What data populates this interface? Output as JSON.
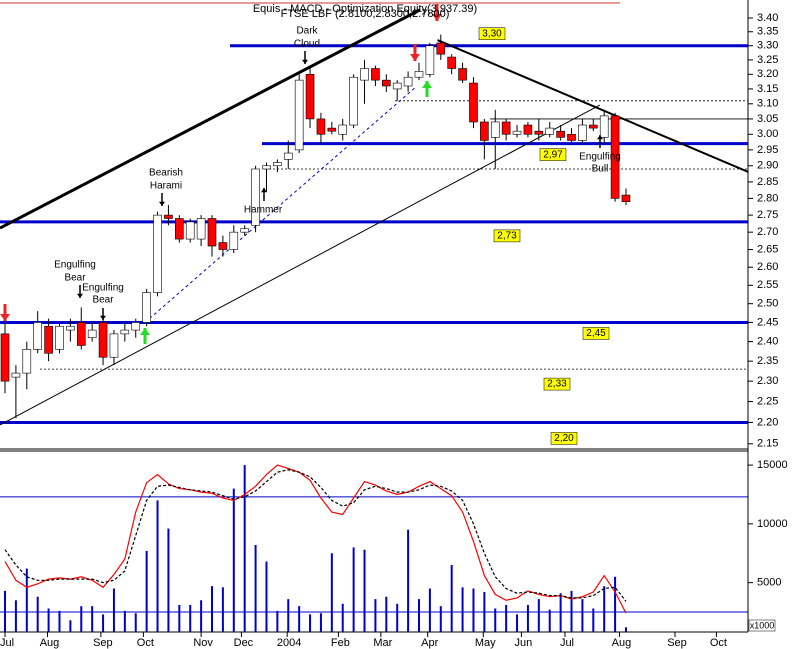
{
  "chart_data": [
    {
      "type": "candlestick",
      "title": "Equis - MACD - Optimization Equity(3,937.39)",
      "subtitle": "FTSE LBF (2.8100,2.8300,2.7800)",
      "x": [
        0,
        1,
        2,
        3,
        4,
        5,
        6,
        7,
        8,
        9,
        10,
        11,
        12,
        13,
        14,
        15,
        16,
        17,
        18,
        19,
        20,
        21,
        22,
        23,
        24,
        25,
        26,
        27,
        28,
        29,
        30,
        31,
        32,
        33,
        34,
        35,
        36,
        37,
        38,
        39,
        40,
        41,
        42,
        43,
        44,
        45,
        46,
        47,
        48,
        49,
        50,
        51,
        52,
        53,
        54,
        55,
        56,
        57
      ],
      "open": [
        2.42,
        2.31,
        2.32,
        2.38,
        2.44,
        2.38,
        2.43,
        2.45,
        2.41,
        2.45,
        2.36,
        2.42,
        2.43,
        2.45,
        2.53,
        2.75,
        2.74,
        2.68,
        2.68,
        2.74,
        2.67,
        2.65,
        2.7,
        2.72,
        2.89,
        2.9,
        2.92,
        2.95,
        3.2,
        3.05,
        3.02,
        3.0,
        3.03,
        3.18,
        3.22,
        3.18,
        3.15,
        3.16,
        3.19,
        3.2,
        3.31,
        3.26,
        3.22,
        3.17,
        3.04,
        2.99,
        3.04,
        3.0,
        3.03,
        3.01,
        3.0,
        3.01,
        3.0,
        2.98,
        3.03,
        2.99,
        3.06,
        2.81
      ],
      "high": [
        2.45,
        2.34,
        2.4,
        2.48,
        2.46,
        2.45,
        2.46,
        2.49,
        2.45,
        2.46,
        2.43,
        2.45,
        2.46,
        2.54,
        2.76,
        2.78,
        2.75,
        2.74,
        2.75,
        2.75,
        2.69,
        2.72,
        2.72,
        2.9,
        2.91,
        2.92,
        2.98,
        3.2,
        3.23,
        3.07,
        3.04,
        3.05,
        3.2,
        3.25,
        3.23,
        3.2,
        3.18,
        3.21,
        3.24,
        3.31,
        3.34,
        3.27,
        3.24,
        3.19,
        3.05,
        3.08,
        3.05,
        3.03,
        3.04,
        3.05,
        3.04,
        3.03,
        3.02,
        3.05,
        3.05,
        3.08,
        3.07,
        2.83
      ],
      "low": [
        2.27,
        2.21,
        2.28,
        2.37,
        2.35,
        2.37,
        2.4,
        2.38,
        2.4,
        2.34,
        2.34,
        2.4,
        2.41,
        2.44,
        2.52,
        2.72,
        2.67,
        2.67,
        2.66,
        2.63,
        2.63,
        2.64,
        2.69,
        2.7,
        2.82,
        2.88,
        2.89,
        2.94,
        3.02,
        2.97,
        3.0,
        2.98,
        3.02,
        3.1,
        3.16,
        3.14,
        3.11,
        3.14,
        3.18,
        3.19,
        3.25,
        3.2,
        3.17,
        3.02,
        2.92,
        2.89,
        2.98,
        2.99,
        2.99,
        2.98,
        2.99,
        2.98,
        2.97,
        2.97,
        3.01,
        2.97,
        2.79,
        2.78
      ],
      "close": [
        2.3,
        2.32,
        2.38,
        2.45,
        2.37,
        2.44,
        2.44,
        2.39,
        2.43,
        2.36,
        2.42,
        2.43,
        2.45,
        2.53,
        2.75,
        2.74,
        2.68,
        2.73,
        2.74,
        2.66,
        2.65,
        2.7,
        2.71,
        2.89,
        2.9,
        2.91,
        2.94,
        3.18,
        3.05,
        3.0,
        3.01,
        3.03,
        3.19,
        3.22,
        3.18,
        3.16,
        3.17,
        3.19,
        3.21,
        3.3,
        3.27,
        3.22,
        3.18,
        3.04,
        2.98,
        3.04,
        3.0,
        3.01,
        3.0,
        3.0,
        3.02,
        2.99,
        2.98,
        3.03,
        3.02,
        3.06,
        2.8,
        2.79
      ],
      "up_color": "#ffffff",
      "down_color": "#ff0000",
      "log": true,
      "xlim": [
        -0.46,
        68.2
      ],
      "ylim": [
        2.138,
        3.459
      ],
      "yticks": [
        {
          "value": 3.4,
          "label": "3.40"
        },
        3.35,
        {
          "value": 3.3,
          "label": "3.30"
        },
        3.25,
        {
          "value": 3.2,
          "label": "3.20"
        },
        3.15,
        {
          "value": 3.1,
          "label": "3.10"
        },
        3.05,
        {
          "value": 3.0,
          "label": "3.00"
        },
        2.95,
        {
          "value": 2.9,
          "label": "2.90"
        },
        2.85,
        {
          "value": 2.8,
          "label": "2.80"
        },
        2.75,
        {
          "value": 2.7,
          "label": "2.70"
        },
        2.65,
        {
          "value": 2.6,
          "label": "2.60"
        },
        2.55,
        {
          "value": 2.5,
          "label": "2.50"
        },
        2.45,
        {
          "value": 2.4,
          "label": "2.40"
        },
        2.35,
        {
          "value": 2.3,
          "label": "2.30"
        },
        2.25,
        {
          "value": 2.2,
          "label": "2.20"
        },
        2.15
      ],
      "xticks": [
        {
          "value": 0,
          "label": "Jul"
        },
        {
          "value": 3.9,
          "label": "Aug"
        },
        {
          "value": 8.8,
          "label": "Sep"
        },
        {
          "value": 12.7,
          "label": "Oct"
        },
        {
          "value": 18,
          "label": "Nov"
        },
        {
          "value": 21.7,
          "label": "Dec"
        },
        {
          "value": 25.9,
          "label": "2004"
        },
        {
          "value": 30.6,
          "label": "Feb"
        },
        {
          "value": 34.5,
          "label": "Mar"
        },
        {
          "value": 38.8,
          "label": "Apr"
        },
        {
          "value": 43.9,
          "label": "May"
        },
        {
          "value": 47.4,
          "label": "Jun"
        },
        {
          "value": 51.4,
          "label": "Jul"
        },
        {
          "value": 56.4,
          "label": "Aug"
        },
        {
          "value": 61.5,
          "label": "Sep"
        },
        {
          "value": 65.3,
          "label": "Oct"
        }
      ],
      "levels": [
        {
          "value": 3.3,
          "label": "3,30",
          "color": "#0000cc"
        },
        {
          "value": 2.97,
          "label": "2,97",
          "color": "#0000cc"
        },
        {
          "value": 2.73,
          "label": "2,73",
          "color": "#0000cc"
        },
        {
          "value": 2.45,
          "label": "2,45",
          "color": "#0000cc"
        },
        {
          "value": 2.33,
          "label": "2,33",
          "color": "#000000",
          "dash": true
        },
        {
          "value": 2.2,
          "label": "2,20",
          "color": "#0000cc"
        }
      ],
      "guides": [
        {
          "value": 3.11,
          "color": "#000000",
          "dash": true
        },
        {
          "value": 2.89,
          "color": "#000000",
          "dash": true
        },
        {
          "value": 3.05,
          "color": "#000000"
        }
      ],
      "trendlines": [
        {
          "x": [
            -0.46,
            38.1
          ],
          "y": [
            2.712,
            3.43
          ],
          "color": "#000000",
          "width": 3
        },
        {
          "x": [
            39.7,
            68.2
          ],
          "y": [
            3.32,
            2.881
          ],
          "color": "#000000",
          "width": 2
        },
        {
          "x": [
            -0.46,
            54.6
          ],
          "y": [
            2.194,
            3.096
          ],
          "color": "#000000",
          "width": 1
        },
        {
          "x": [
            12.85,
            37.6
          ],
          "y": [
            2.45,
            3.153
          ],
          "color": "#0000cc",
          "width": 1,
          "dash": true
        }
      ],
      "annotations": [
        {
          "text": [
            "Engulfing",
            "Bear"
          ]
        },
        {
          "text": [
            "Engulfing",
            "Bear"
          ]
        },
        {
          "text": [
            "Bearish",
            "Harami"
          ]
        },
        {
          "text": [
            "Hammer"
          ]
        },
        {
          "text": [
            "Dark",
            "Cloud"
          ]
        },
        {
          "text": [
            "Engulfing",
            "Bull"
          ]
        }
      ]
    },
    {
      "type": "combo",
      "series": [
        {
          "kind": "bar",
          "color": "#0000cc",
          "values": [
            4300,
            3500,
            6200,
            3800,
            2800,
            2600,
            1800,
            3000,
            3000,
            2300,
            4500,
            2600,
            2400,
            7700,
            12000,
            9600,
            3100,
            3100,
            3500,
            4700,
            4600,
            13000,
            15000,
            8200,
            6800,
            2600,
            3600,
            3000,
            2300,
            2400,
            7500,
            3200,
            8000,
            7800,
            3600,
            3800,
            3200,
            9500,
            3600,
            4500,
            3000,
            6500,
            4600,
            4500,
            4200,
            2800,
            3100,
            2300,
            3100,
            3600,
            2700,
            4100,
            4300,
            3600,
            2800,
            4700,
            5500,
            1200
          ]
        },
        {
          "kind": "line",
          "color": "#ff0000",
          "values": [
            6800,
            5200,
            4600,
            4900,
            5300,
            5400,
            5300,
            5500,
            5200,
            4600,
            5700,
            7000,
            11000,
            13500,
            14200,
            13400,
            13000,
            12900,
            12700,
            12600,
            12200,
            12000,
            12500,
            13200,
            14200,
            15000,
            14700,
            14400,
            13700,
            12200,
            11000,
            10800,
            12200,
            13600,
            13300,
            12800,
            12500,
            12700,
            13200,
            13600,
            13000,
            12400,
            11000,
            8500,
            5600,
            4000,
            3500,
            3700,
            4300,
            4000,
            3800,
            3900,
            3600,
            3800,
            4200,
            5600,
            4200,
            2400
          ]
        },
        {
          "kind": "line",
          "color": "#000000",
          "dash": true,
          "values": [
            7800,
            6500,
            5500,
            5200,
            5200,
            5300,
            5300,
            5300,
            5300,
            5000,
            5200,
            6000,
            9000,
            12000,
            13200,
            13300,
            13100,
            12900,
            12800,
            12700,
            12400,
            12100,
            12300,
            12800,
            13600,
            14400,
            14600,
            14400,
            14000,
            13100,
            12000,
            11500,
            11800,
            12900,
            13200,
            13000,
            12700,
            12700,
            12900,
            13300,
            13200,
            12800,
            12000,
            10000,
            7500,
            5500,
            4500,
            4100,
            4200,
            4100,
            3900,
            3900,
            3700,
            3700,
            3900,
            4500,
            4600,
            3400
          ]
        }
      ],
      "ylim": [
        800,
        16200
      ],
      "yticks": [
        15000,
        10000,
        5000
      ],
      "levels": [
        12300,
        2500
      ],
      "unit_label": "x1000"
    }
  ]
}
